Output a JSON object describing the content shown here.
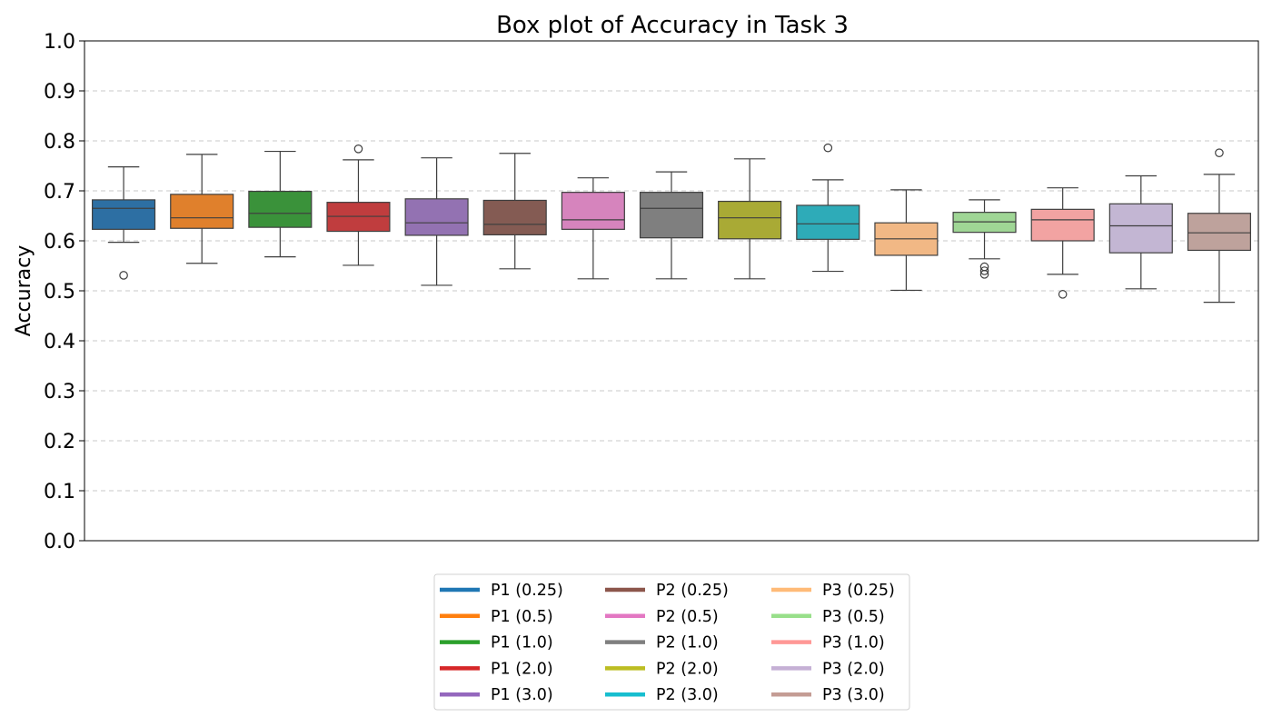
{
  "chart_data": {
    "type": "box",
    "title": "Box plot of Accuracy in Task 3",
    "ylabel": "Accuracy",
    "ylim": [
      0,
      1
    ],
    "yticks": [
      "0.0",
      "0.1",
      "0.2",
      "0.3",
      "0.4",
      "0.5",
      "0.6",
      "0.7",
      "0.8",
      "0.9",
      "1.0"
    ],
    "grid": "horizontal-dashed",
    "legend_position": "bottom-center",
    "series": [
      {
        "name": "P1 (0.25)",
        "color": "#1f77b4",
        "box": "#2d6fa3",
        "whisker_low": 0.597,
        "q1": 0.623,
        "median": 0.665,
        "q3": 0.682,
        "whisker_high": 0.748,
        "outliers": [
          0.531
        ]
      },
      {
        "name": "P1 (0.5)",
        "color": "#ff7f0e",
        "box": "#e0802c",
        "whisker_low": 0.555,
        "q1": 0.625,
        "median": 0.646,
        "q3": 0.693,
        "whisker_high": 0.773,
        "outliers": []
      },
      {
        "name": "P1 (1.0)",
        "color": "#2ca02c",
        "box": "#3a923a",
        "whisker_low": 0.568,
        "q1": 0.627,
        "median": 0.655,
        "q3": 0.699,
        "whisker_high": 0.779,
        "outliers": []
      },
      {
        "name": "P1 (2.0)",
        "color": "#d62728",
        "box": "#c03d3e",
        "whisker_low": 0.551,
        "q1": 0.619,
        "median": 0.649,
        "q3": 0.677,
        "whisker_high": 0.762,
        "outliers": [
          0.784
        ]
      },
      {
        "name": "P1 (3.0)",
        "color": "#9467bd",
        "box": "#9372b2",
        "whisker_low": 0.511,
        "q1": 0.611,
        "median": 0.636,
        "q3": 0.684,
        "whisker_high": 0.766,
        "outliers": []
      },
      {
        "name": "P2 (0.25)",
        "color": "#8c564b",
        "box": "#845b53",
        "whisker_low": 0.544,
        "q1": 0.612,
        "median": 0.633,
        "q3": 0.681,
        "whisker_high": 0.775,
        "outliers": []
      },
      {
        "name": "P2 (0.5)",
        "color": "#e377c2",
        "box": "#d684bd",
        "whisker_low": 0.524,
        "q1": 0.623,
        "median": 0.642,
        "q3": 0.697,
        "whisker_high": 0.726,
        "outliers": []
      },
      {
        "name": "P2 (1.0)",
        "color": "#7f7f7f",
        "box": "#7f7f7f",
        "whisker_low": 0.524,
        "q1": 0.606,
        "median": 0.665,
        "q3": 0.697,
        "whisker_high": 0.738,
        "outliers": []
      },
      {
        "name": "P2 (2.0)",
        "color": "#bcbd22",
        "box": "#a9aa35",
        "whisker_low": 0.524,
        "q1": 0.604,
        "median": 0.646,
        "q3": 0.679,
        "whisker_high": 0.764,
        "outliers": []
      },
      {
        "name": "P2 (3.0)",
        "color": "#17becf",
        "box": "#2eabb8",
        "whisker_low": 0.539,
        "q1": 0.603,
        "median": 0.634,
        "q3": 0.671,
        "whisker_high": 0.722,
        "outliers": [
          0.786
        ]
      },
      {
        "name": "P3 (0.25)",
        "color": "#ffbb78",
        "box": "#f1b885",
        "whisker_low": 0.501,
        "q1": 0.571,
        "median": 0.604,
        "q3": 0.636,
        "whisker_high": 0.702,
        "outliers": []
      },
      {
        "name": "P3 (0.5)",
        "color": "#98df8a",
        "box": "#9fd695",
        "whisker_low": 0.564,
        "q1": 0.617,
        "median": 0.638,
        "q3": 0.657,
        "whisker_high": 0.682,
        "outliers": [
          0.548,
          0.54,
          0.533
        ]
      },
      {
        "name": "P3 (1.0)",
        "color": "#ff9896",
        "box": "#f2a3a2",
        "whisker_low": 0.533,
        "q1": 0.6,
        "median": 0.642,
        "q3": 0.663,
        "whisker_high": 0.706,
        "outliers": [
          0.493
        ]
      },
      {
        "name": "P3 (2.0)",
        "color": "#c5b0d5",
        "box": "#c3b6d3",
        "whisker_low": 0.504,
        "q1": 0.576,
        "median": 0.63,
        "q3": 0.674,
        "whisker_high": 0.73,
        "outliers": []
      },
      {
        "name": "P3 (3.0)",
        "color": "#c49c94",
        "box": "#bea29c",
        "whisker_low": 0.477,
        "q1": 0.581,
        "median": 0.616,
        "q3": 0.655,
        "whisker_high": 0.733,
        "outliers": [
          0.776
        ]
      }
    ]
  }
}
